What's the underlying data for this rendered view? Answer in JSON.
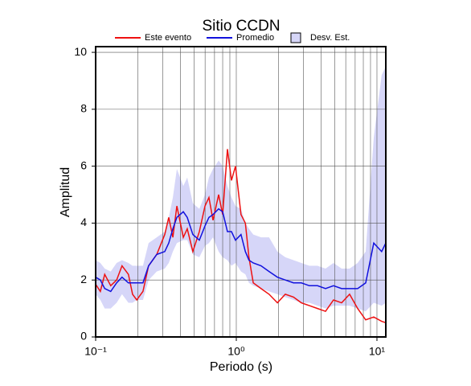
{
  "chart_data": {
    "type": "line",
    "title": "Sitio CCDN",
    "xlabel": "Periodo (s)",
    "ylabel": "Amplitud",
    "xscale": "log",
    "grid": true,
    "xlim": [
      0.1,
      11.56
    ],
    "ylim": [
      0,
      10.2
    ],
    "xticks": [
      {
        "value": 0.1,
        "label": "10⁻¹"
      },
      {
        "value": 1,
        "label": "10⁰"
      },
      {
        "value": 10,
        "label": "10¹"
      }
    ],
    "yticks": [
      0,
      2,
      4,
      6,
      8,
      10
    ],
    "x": [
      0.1,
      0.108,
      0.116,
      0.128,
      0.141,
      0.154,
      0.171,
      0.183,
      0.196,
      0.217,
      0.238,
      0.272,
      0.31,
      0.331,
      0.354,
      0.378,
      0.42,
      0.448,
      0.491,
      0.546,
      0.599,
      0.639,
      0.683,
      0.749,
      0.8,
      0.865,
      0.924,
      0.987,
      1.08,
      1.16,
      1.23,
      1.32,
      1.5,
      1.71,
      1.96,
      2.23,
      2.55,
      2.9,
      3.31,
      3.78,
      4.31,
      4.91,
      5.61,
      6.39,
      7.29,
      8.32,
      9.49,
      10.8,
      11.56
    ],
    "series": [
      {
        "name": "Este evento",
        "color": "#ee1111",
        "values": [
          1.85,
          1.6,
          2.2,
          1.8,
          2.0,
          2.5,
          2.2,
          1.5,
          1.3,
          1.6,
          2.5,
          2.9,
          3.6,
          4.2,
          3.5,
          4.6,
          3.5,
          3.8,
          3.0,
          3.7,
          4.6,
          4.9,
          4.1,
          5.0,
          4.3,
          6.6,
          5.5,
          6.0,
          4.3,
          4.0,
          2.8,
          1.9,
          1.7,
          1.5,
          1.2,
          1.5,
          1.4,
          1.2,
          1.1,
          1.0,
          0.9,
          1.3,
          1.2,
          1.5,
          1.0,
          0.6,
          0.7,
          0.55,
          0.5
        ]
      },
      {
        "name": "Promedio",
        "color": "#1111dd",
        "values": [
          2.1,
          2.0,
          1.7,
          1.6,
          1.9,
          2.1,
          1.9,
          1.9,
          1.9,
          1.9,
          2.5,
          2.9,
          3.0,
          3.3,
          3.8,
          4.2,
          4.4,
          4.2,
          3.6,
          3.4,
          3.9,
          4.2,
          4.3,
          4.5,
          4.4,
          3.7,
          3.7,
          3.4,
          3.6,
          3.0,
          2.7,
          2.6,
          2.5,
          2.3,
          2.1,
          2.0,
          1.9,
          1.9,
          1.8,
          1.8,
          1.7,
          1.8,
          1.7,
          1.7,
          1.7,
          1.9,
          3.3,
          3.0,
          3.3
        ]
      },
      {
        "name": "Desv. Est.",
        "color": "#d6d6f8",
        "band": true,
        "lower": [
          1.5,
          1.3,
          1.0,
          1.0,
          1.2,
          1.5,
          1.2,
          1.2,
          1.3,
          1.3,
          2.0,
          2.3,
          2.4,
          2.6,
          3.0,
          3.3,
          3.4,
          3.4,
          2.9,
          2.8,
          3.2,
          3.3,
          3.5,
          3.0,
          2.8,
          2.7,
          2.5,
          2.6,
          2.3,
          2.2,
          1.9,
          1.8,
          1.7,
          1.6,
          1.5,
          1.4,
          1.3,
          1.2,
          1.2,
          1.1,
          1.0,
          1.1,
          1.1,
          1.1,
          1.0,
          0.9,
          1.2,
          1.1,
          1.2
        ],
        "upper": [
          2.7,
          2.6,
          2.4,
          2.3,
          2.6,
          2.7,
          2.6,
          2.5,
          2.5,
          2.5,
          3.3,
          3.5,
          3.7,
          4.2,
          4.9,
          5.9,
          5.3,
          5.6,
          4.7,
          4.5,
          5.0,
          5.6,
          5.9,
          6.2,
          6.0,
          5.3,
          4.9,
          4.6,
          4.5,
          4.0,
          3.8,
          3.6,
          3.5,
          3.5,
          3.0,
          2.8,
          2.7,
          2.6,
          2.5,
          2.5,
          2.4,
          2.6,
          2.4,
          2.4,
          2.6,
          3.0,
          7.0,
          9.2,
          9.5
        ]
      }
    ]
  }
}
